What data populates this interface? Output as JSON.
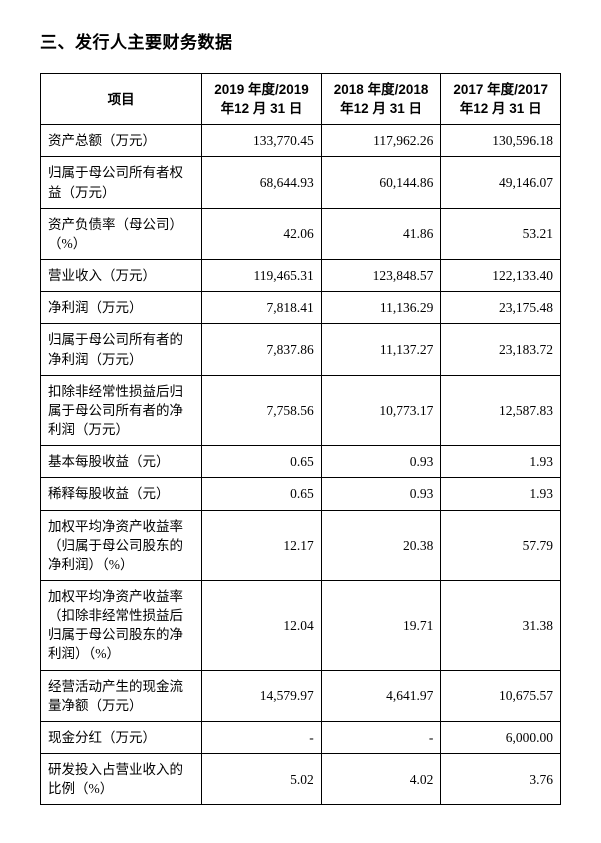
{
  "title": "三、发行人主要财务数据",
  "columns": [
    "项目",
    "2019 年度/2019 年12 月 31 日",
    "2018 年度/2018 年12 月 31 日",
    "2017 年度/2017 年12 月 31 日"
  ],
  "rows": [
    {
      "label": "资产总额（万元）",
      "v": [
        "133,770.45",
        "117,962.26",
        "130,596.18"
      ]
    },
    {
      "label": "归属于母公司所有者权益（万元）",
      "v": [
        "68,644.93",
        "60,144.86",
        "49,146.07"
      ]
    },
    {
      "label": "资产负债率（母公司）（%）",
      "v": [
        "42.06",
        "41.86",
        "53.21"
      ]
    },
    {
      "label": "营业收入（万元）",
      "v": [
        "119,465.31",
        "123,848.57",
        "122,133.40"
      ]
    },
    {
      "label": "净利润（万元）",
      "v": [
        "7,818.41",
        "11,136.29",
        "23,175.48"
      ]
    },
    {
      "label": "归属于母公司所有者的净利润（万元）",
      "v": [
        "7,837.86",
        "11,137.27",
        "23,183.72"
      ]
    },
    {
      "label": "扣除非经常性损益后归属于母公司所有者的净利润（万元）",
      "v": [
        "7,758.56",
        "10,773.17",
        "12,587.83"
      ]
    },
    {
      "label": "基本每股收益（元）",
      "v": [
        "0.65",
        "0.93",
        "1.93"
      ]
    },
    {
      "label": "稀释每股收益（元）",
      "v": [
        "0.65",
        "0.93",
        "1.93"
      ]
    },
    {
      "label": "加权平均净资产收益率（归属于母公司股东的净利润）（%）",
      "v": [
        "12.17",
        "20.38",
        "57.79"
      ]
    },
    {
      "label": "加权平均净资产收益率（扣除非经常性损益后归属于母公司股东的净利润）（%）",
      "v": [
        "12.04",
        "19.71",
        "31.38"
      ]
    },
    {
      "label": "经营活动产生的现金流量净额（万元）",
      "v": [
        "14,579.97",
        "4,641.97",
        "10,675.57"
      ]
    },
    {
      "label": "现金分红（万元）",
      "v": [
        "-",
        "-",
        "6,000.00"
      ]
    },
    {
      "label": "研发投入占营业收入的比例（%）",
      "v": [
        "5.02",
        "4.02",
        "3.76"
      ]
    }
  ],
  "style": {
    "background_color": "#ffffff",
    "text_color": "#000000",
    "border_color": "#000000",
    "title_fontsize": 17,
    "cell_fontsize": 13.5
  }
}
